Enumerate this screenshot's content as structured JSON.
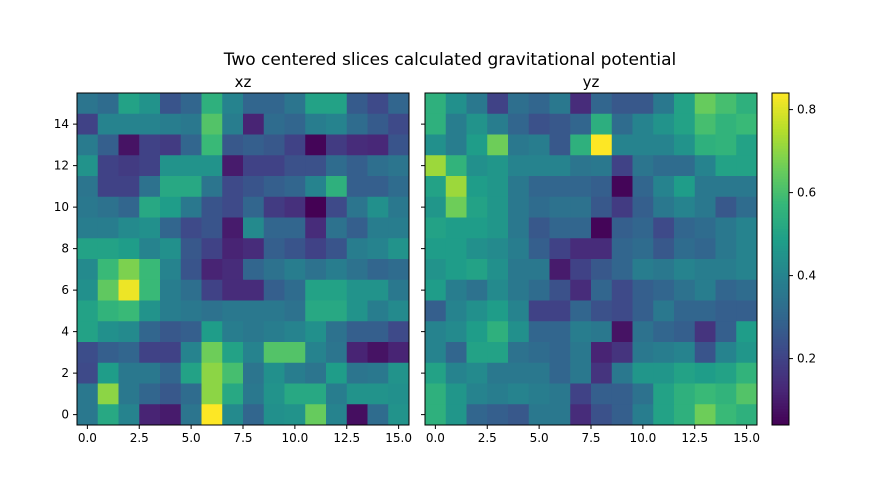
{
  "chart_data": {
    "type": "heatmap",
    "title": "Two centered slices calculated gravitational potential",
    "colormap": "viridis",
    "color_range": [
      0.04,
      0.84
    ],
    "colorbar_ticks": [
      "0.2",
      "0.4",
      "0.6",
      "0.8"
    ],
    "colorbar_tick_values": [
      0.2,
      0.4,
      0.6,
      0.8
    ],
    "x_ticks": [
      "0.0",
      "2.5",
      "5.0",
      "7.5",
      "10.0",
      "12.5",
      "15.0"
    ],
    "x_tick_values": [
      0,
      2.5,
      5,
      7.5,
      10,
      12.5,
      15
    ],
    "y_ticks": [
      "0",
      "2",
      "4",
      "6",
      "8",
      "10",
      "12",
      "14"
    ],
    "y_tick_values": [
      0,
      2,
      4,
      6,
      8,
      10,
      12,
      14
    ],
    "xlim": [
      -0.5,
      15.5
    ],
    "ylim": [
      15.5,
      -0.5
    ],
    "panels": [
      {
        "title": "xz",
        "matrix": [
          [
            0.35,
            0.32,
            0.5,
            0.45,
            0.25,
            0.3,
            0.55,
            0.4,
            0.3,
            0.3,
            0.35,
            0.5,
            0.5,
            0.27,
            0.22,
            0.3
          ],
          [
            0.2,
            0.4,
            0.4,
            0.4,
            0.38,
            0.36,
            0.62,
            0.38,
            0.12,
            0.32,
            0.3,
            0.38,
            0.4,
            0.32,
            0.27,
            0.22
          ],
          [
            0.37,
            0.28,
            0.08,
            0.2,
            0.18,
            0.3,
            0.58,
            0.26,
            0.28,
            0.26,
            0.2,
            0.05,
            0.18,
            0.14,
            0.13,
            0.25
          ],
          [
            0.45,
            0.2,
            0.18,
            0.2,
            0.45,
            0.45,
            0.45,
            0.1,
            0.2,
            0.2,
            0.24,
            0.24,
            0.32,
            0.28,
            0.33,
            0.35
          ],
          [
            0.35,
            0.2,
            0.2,
            0.34,
            0.52,
            0.52,
            0.35,
            0.22,
            0.25,
            0.28,
            0.3,
            0.4,
            0.55,
            0.28,
            0.28,
            0.32
          ],
          [
            0.36,
            0.34,
            0.3,
            0.52,
            0.48,
            0.36,
            0.25,
            0.22,
            0.3,
            0.18,
            0.15,
            0.02,
            0.22,
            0.35,
            0.44,
            0.36
          ],
          [
            0.38,
            0.38,
            0.42,
            0.44,
            0.3,
            0.22,
            0.25,
            0.1,
            0.42,
            0.3,
            0.3,
            0.14,
            0.34,
            0.28,
            0.38,
            0.38
          ],
          [
            0.5,
            0.5,
            0.48,
            0.4,
            0.44,
            0.26,
            0.2,
            0.12,
            0.14,
            0.28,
            0.25,
            0.2,
            0.25,
            0.38,
            0.4,
            0.45
          ],
          [
            0.42,
            0.58,
            0.68,
            0.58,
            0.4,
            0.25,
            0.12,
            0.14,
            0.3,
            0.34,
            0.38,
            0.34,
            0.38,
            0.34,
            0.3,
            0.32
          ],
          [
            0.44,
            0.64,
            0.82,
            0.58,
            0.38,
            0.33,
            0.2,
            0.14,
            0.14,
            0.28,
            0.32,
            0.5,
            0.5,
            0.45,
            0.45,
            0.36
          ],
          [
            0.5,
            0.56,
            0.58,
            0.45,
            0.38,
            0.36,
            0.34,
            0.36,
            0.36,
            0.36,
            0.34,
            0.52,
            0.52,
            0.45,
            0.38,
            0.42
          ],
          [
            0.5,
            0.44,
            0.42,
            0.3,
            0.26,
            0.28,
            0.48,
            0.38,
            0.36,
            0.38,
            0.4,
            0.44,
            0.34,
            0.28,
            0.28,
            0.22
          ],
          [
            0.23,
            0.28,
            0.3,
            0.2,
            0.2,
            0.4,
            0.66,
            0.5,
            0.4,
            0.62,
            0.62,
            0.4,
            0.35,
            0.12,
            0.08,
            0.12
          ],
          [
            0.22,
            0.48,
            0.36,
            0.36,
            0.3,
            0.5,
            0.7,
            0.6,
            0.35,
            0.44,
            0.38,
            0.35,
            0.48,
            0.35,
            0.36,
            0.45
          ],
          [
            0.36,
            0.7,
            0.36,
            0.3,
            0.26,
            0.32,
            0.7,
            0.52,
            0.36,
            0.45,
            0.52,
            0.52,
            0.38,
            0.45,
            0.45,
            0.44
          ],
          [
            0.36,
            0.52,
            0.4,
            0.12,
            0.1,
            0.35,
            0.84,
            0.42,
            0.3,
            0.44,
            0.45,
            0.65,
            0.4,
            0.07,
            0.32,
            0.45
          ]
        ]
      },
      {
        "title": "yz",
        "matrix": [
          [
            0.55,
            0.44,
            0.36,
            0.2,
            0.33,
            0.3,
            0.36,
            0.14,
            0.3,
            0.26,
            0.26,
            0.36,
            0.5,
            0.65,
            0.6,
            0.55
          ],
          [
            0.55,
            0.38,
            0.45,
            0.38,
            0.3,
            0.24,
            0.26,
            0.3,
            0.54,
            0.32,
            0.4,
            0.45,
            0.5,
            0.6,
            0.56,
            0.58
          ],
          [
            0.44,
            0.38,
            0.48,
            0.66,
            0.36,
            0.38,
            0.26,
            0.55,
            0.84,
            0.4,
            0.4,
            0.4,
            0.45,
            0.55,
            0.56,
            0.5
          ],
          [
            0.72,
            0.56,
            0.44,
            0.46,
            0.4,
            0.4,
            0.4,
            0.35,
            0.36,
            0.2,
            0.35,
            0.32,
            0.32,
            0.4,
            0.5,
            0.5
          ],
          [
            0.5,
            0.72,
            0.48,
            0.46,
            0.36,
            0.3,
            0.3,
            0.3,
            0.28,
            0.05,
            0.3,
            0.4,
            0.48,
            0.36,
            0.36,
            0.36
          ],
          [
            0.46,
            0.66,
            0.5,
            0.46,
            0.36,
            0.32,
            0.34,
            0.34,
            0.26,
            0.18,
            0.28,
            0.36,
            0.4,
            0.36,
            0.26,
            0.32
          ],
          [
            0.5,
            0.48,
            0.48,
            0.46,
            0.36,
            0.26,
            0.3,
            0.3,
            0.05,
            0.28,
            0.3,
            0.22,
            0.3,
            0.32,
            0.36,
            0.4
          ],
          [
            0.48,
            0.48,
            0.44,
            0.42,
            0.38,
            0.28,
            0.2,
            0.14,
            0.14,
            0.3,
            0.32,
            0.26,
            0.32,
            0.3,
            0.36,
            0.4
          ],
          [
            0.45,
            0.48,
            0.5,
            0.44,
            0.36,
            0.36,
            0.1,
            0.2,
            0.26,
            0.3,
            0.38,
            0.36,
            0.4,
            0.38,
            0.38,
            0.4
          ],
          [
            0.48,
            0.38,
            0.34,
            0.42,
            0.36,
            0.32,
            0.24,
            0.14,
            0.3,
            0.22,
            0.28,
            0.3,
            0.34,
            0.38,
            0.3,
            0.32
          ],
          [
            0.28,
            0.4,
            0.44,
            0.48,
            0.4,
            0.2,
            0.2,
            0.3,
            0.24,
            0.22,
            0.28,
            0.36,
            0.3,
            0.3,
            0.28,
            0.28
          ],
          [
            0.4,
            0.42,
            0.48,
            0.55,
            0.44,
            0.3,
            0.3,
            0.38,
            0.36,
            0.08,
            0.34,
            0.3,
            0.28,
            0.16,
            0.28,
            0.48
          ],
          [
            0.4,
            0.3,
            0.5,
            0.5,
            0.34,
            0.32,
            0.3,
            0.36,
            0.12,
            0.16,
            0.36,
            0.38,
            0.4,
            0.25,
            0.4,
            0.46
          ],
          [
            0.5,
            0.4,
            0.42,
            0.36,
            0.36,
            0.36,
            0.3,
            0.36,
            0.16,
            0.36,
            0.46,
            0.46,
            0.5,
            0.48,
            0.5,
            0.56
          ],
          [
            0.55,
            0.46,
            0.4,
            0.38,
            0.4,
            0.38,
            0.36,
            0.2,
            0.28,
            0.28,
            0.34,
            0.5,
            0.55,
            0.58,
            0.56,
            0.62
          ],
          [
            0.55,
            0.46,
            0.3,
            0.28,
            0.26,
            0.36,
            0.36,
            0.14,
            0.24,
            0.28,
            0.38,
            0.5,
            0.55,
            0.66,
            0.58,
            0.55
          ]
        ]
      }
    ]
  }
}
